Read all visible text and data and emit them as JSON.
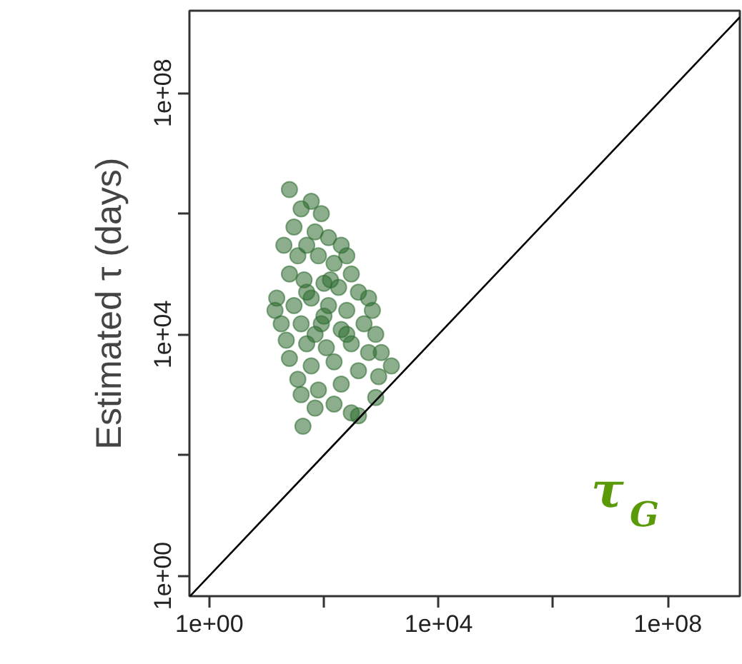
{
  "chart_data": {
    "type": "scatter",
    "ylabel": "Estimated τ (days)",
    "log": "xy",
    "grid": false,
    "xlim": [
      0.45,
      1800000000.0
    ],
    "ylim": [
      0.46,
      2300000000.0
    ],
    "xticks": [
      {
        "value": 1,
        "label": "1e+00"
      },
      {
        "value": 100,
        "label": null
      },
      {
        "value": 10000,
        "label": "1e+04"
      },
      {
        "value": 1000000,
        "label": null
      },
      {
        "value": 100000000,
        "label": "1e+08"
      }
    ],
    "yticks": [
      {
        "value": 1,
        "label": "1e+00"
      },
      {
        "value": 100,
        "label": null
      },
      {
        "value": 10000,
        "label": "1e+04"
      },
      {
        "value": 1000000,
        "label": null
      },
      {
        "value": 100000000,
        "label": "1e+08"
      }
    ],
    "annotations": [
      "τ$_{G}$"
    ],
    "series": [
      {
        "marker": "circle",
        "color": "#2e6b30",
        "x": [
          25,
          60,
          40,
          90,
          30,
          70,
          120,
          200,
          250,
          20,
          35,
          50,
          80,
          150,
          300,
          25,
          45,
          100,
          180,
          400,
          15,
          14,
          30,
          60,
          120,
          250,
          600,
          700,
          18,
          40,
          90,
          200,
          500,
          800,
          22,
          50,
          110,
          300,
          600,
          1000,
          1500,
          25,
          60,
          150,
          400,
          900,
          35,
          80,
          200,
          43,
          70,
          150,
          300,
          400,
          800,
          40,
          250,
          100,
          50,
          70,
          130
        ],
        "values": [
          2500000,
          1600000,
          1200000,
          1000000,
          600000,
          500000,
          400000,
          300000,
          200000,
          300000,
          200000,
          300000,
          200000,
          150000,
          100000,
          100000,
          80000,
          70000,
          60000,
          50000,
          40000,
          25000,
          30000,
          40000,
          30000,
          25000,
          40000,
          25000,
          15000,
          15000,
          15000,
          12000,
          15000,
          10000,
          8000,
          7000,
          6000,
          7000,
          5000,
          5000,
          3000,
          4000,
          3000,
          3500,
          2500,
          2000,
          1800,
          1200,
          1500,
          300,
          600,
          700,
          500,
          450,
          900,
          1000,
          10000,
          20000,
          50000,
          10000,
          80000
        ]
      },
      {
        "type": "line",
        "color": "#000000",
        "x": [
          0.46,
          1800000000.0
        ],
        "values": [
          0.46,
          1800000000.0
        ]
      }
    ]
  }
}
